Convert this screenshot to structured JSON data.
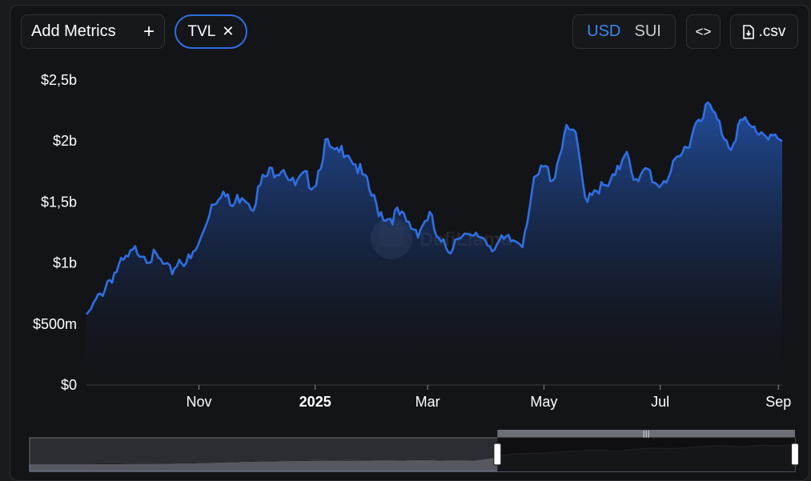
{
  "toolbar": {
    "add_metrics_label": "Add Metrics",
    "add_icon": "plus-icon",
    "metric_chip_label": "TVL",
    "remove_icon": "close-icon",
    "currency_options": [
      "USD",
      "SUI"
    ],
    "currency_selected": "USD",
    "embed_icon": "code-icon",
    "csv_label": ".csv",
    "csv_icon": "download-file-icon"
  },
  "watermark": "DefiLlama",
  "colors": {
    "line": "#2f6fe4",
    "accent": "#3d86f0",
    "background": "#131418"
  },
  "chart_data": {
    "type": "area",
    "series": [
      {
        "values": [
          [
            0.58,
            0.68,
            0.85,
            0.95,
            1.03,
            1.12,
            1.06,
            1.02,
            0.91,
            1.04,
            1.01,
            1.18,
            1.48,
            1.6,
            1.45,
            1.58,
            1.48,
            1.68,
            1.76,
            1.8,
            1.62,
            1.7,
            1.65,
            1.98,
            1.87,
            1.95,
            1.8,
            1.64,
            1.45,
            1.37,
            1.4,
            1.31,
            1.27,
            1.4,
            1.14,
            1.12,
            1.27,
            1.17,
            1.23,
            1.15,
            1.16,
            1.18,
            1.19,
            1.62,
            1.78,
            1.7,
            2.06,
            2.08,
            1.54,
            1.63,
            1.6,
            1.7,
            1.97,
            1.62,
            1.77,
            1.64,
            1.72,
            1.82,
            2.0,
            2.22,
            2.28,
            2.12,
            1.96,
            2.16,
            2.1,
            2.08,
            2.05,
            2.0
          ]
        ]
      }
    ],
    "x_range": [
      "2024-09-03",
      "2025-09-03"
    ],
    "x_ticks": [
      {
        "label": "Nov",
        "date": "2024-11-01",
        "bold": false
      },
      {
        "label": "2025",
        "date": "2025-01-01",
        "bold": true
      },
      {
        "label": "Mar",
        "date": "2025-03-01",
        "bold": false
      },
      {
        "label": "May",
        "date": "2025-05-01",
        "bold": false
      },
      {
        "label": "Jul",
        "date": "2025-07-01",
        "bold": false
      },
      {
        "label": "Sep",
        "date": "2025-09-01",
        "bold": false
      }
    ],
    "y_ticks": [
      {
        "label": "$0",
        "value": 0
      },
      {
        "label": "$500m",
        "value": 0.5
      },
      {
        "label": "$1b",
        "value": 1
      },
      {
        "label": "$1,5b",
        "value": 1.5
      },
      {
        "label": "$2b",
        "value": 2
      },
      {
        "label": "$2,5b",
        "value": 2.5
      }
    ],
    "ylim": [
      0,
      2.5
    ],
    "grid": false,
    "overview": {
      "selection": [
        0.63,
        1.0
      ],
      "values": [
        0.04,
        0.04,
        0.04,
        0.04,
        0.05,
        0.05,
        0.06,
        0.06,
        0.07,
        0.08,
        0.1,
        0.12,
        0.14,
        0.16,
        0.17,
        0.18,
        0.19,
        0.2,
        0.19,
        0.2,
        0.21,
        0.2,
        0.22,
        0.2,
        0.21,
        0.2,
        0.3,
        0.45,
        0.48,
        0.5,
        0.56,
        0.6,
        0.62,
        0.58,
        0.66,
        0.7,
        0.68,
        0.72,
        0.78,
        0.8,
        0.76,
        0.82,
        0.8,
        0.84
      ]
    }
  }
}
